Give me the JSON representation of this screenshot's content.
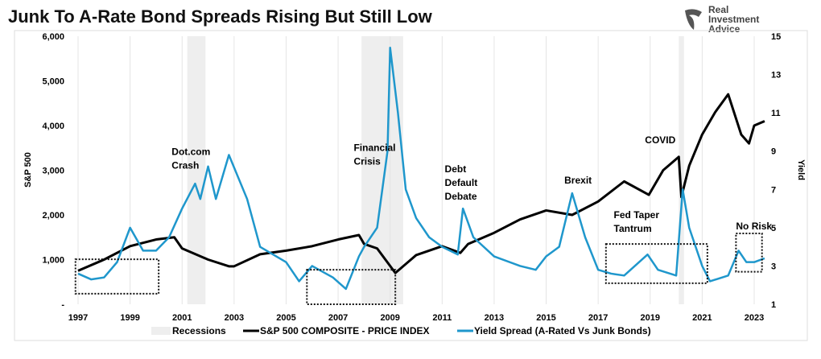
{
  "chart_data": {
    "type": "line",
    "title": "Junk To A-Rate Bond Spreads Rising But Still Low",
    "ylabel": "S&P 500",
    "y2label": "Yield",
    "xlim": [
      1997,
      2023.5
    ],
    "ylim": [
      0,
      6000
    ],
    "y2lim": [
      1,
      15
    ],
    "xticks": [
      "1997",
      "1999",
      "2001",
      "2003",
      "2005",
      "2007",
      "2009",
      "2011",
      "2013",
      "2015",
      "2017",
      "2019",
      "2021",
      "2023"
    ],
    "yticks": [
      "-",
      "1,000",
      "2,000",
      "3,000",
      "4,000",
      "5,000",
      "6,000"
    ],
    "y2ticks": [
      "1",
      "3",
      "5",
      "7",
      "9",
      "11",
      "13",
      "15"
    ],
    "grid": "vertical",
    "legend": {
      "placement": "bottom",
      "items": [
        "Recessions",
        "S&P 500 COMPOSITE - PRICE INDEX",
        "Yield Spread (A-Rated Vs Junk Bonds)"
      ]
    },
    "colors": {
      "recession": "#eeeeee",
      "sp500": "#000000",
      "spread": "#1f97cc"
    },
    "recessions": [
      [
        2001.2,
        2001.9
      ],
      [
        2007.9,
        2009.5
      ],
      [
        2020.1,
        2020.3
      ]
    ],
    "series": [
      {
        "name": "S&P 500 COMPOSITE - PRICE INDEX",
        "axis": "left",
        "points": [
          [
            1997,
            750
          ],
          [
            1998,
            1000
          ],
          [
            1999,
            1300
          ],
          [
            2000,
            1450
          ],
          [
            2000.7,
            1500
          ],
          [
            2001,
            1250
          ],
          [
            2002,
            1000
          ],
          [
            2002.8,
            850
          ],
          [
            2003,
            850
          ],
          [
            2004,
            1120
          ],
          [
            2005,
            1200
          ],
          [
            2006,
            1300
          ],
          [
            2007,
            1450
          ],
          [
            2007.8,
            1550
          ],
          [
            2008,
            1350
          ],
          [
            2008.5,
            1250
          ],
          [
            2009.2,
            700
          ],
          [
            2010,
            1100
          ],
          [
            2011,
            1300
          ],
          [
            2011.7,
            1150
          ],
          [
            2012,
            1350
          ],
          [
            2013,
            1600
          ],
          [
            2014,
            1900
          ],
          [
            2015,
            2100
          ],
          [
            2016,
            2000
          ],
          [
            2017,
            2300
          ],
          [
            2018,
            2750
          ],
          [
            2018.95,
            2450
          ],
          [
            2019.5,
            3000
          ],
          [
            2020.1,
            3300
          ],
          [
            2020.2,
            2400
          ],
          [
            2020.5,
            3100
          ],
          [
            2021,
            3800
          ],
          [
            2021.5,
            4300
          ],
          [
            2022,
            4700
          ],
          [
            2022.5,
            3800
          ],
          [
            2022.8,
            3600
          ],
          [
            2023,
            4000
          ],
          [
            2023.4,
            4100
          ]
        ]
      },
      {
        "name": "Yield Spread (A-Rated Vs Junk Bonds)",
        "axis": "right",
        "points": [
          [
            1997,
            2.6
          ],
          [
            1997.5,
            2.3
          ],
          [
            1998,
            2.4
          ],
          [
            1998.5,
            3.2
          ],
          [
            1999,
            5.0
          ],
          [
            1999.5,
            3.8
          ],
          [
            2000,
            3.8
          ],
          [
            2000.5,
            4.5
          ],
          [
            2001,
            6.0
          ],
          [
            2001.5,
            7.3
          ],
          [
            2001.7,
            6.5
          ],
          [
            2002,
            8.2
          ],
          [
            2002.3,
            6.5
          ],
          [
            2002.8,
            8.8
          ],
          [
            2003.5,
            6.5
          ],
          [
            2004,
            4.0
          ],
          [
            2005,
            3.2
          ],
          [
            2005.5,
            2.2
          ],
          [
            2006,
            3.0
          ],
          [
            2006.8,
            2.4
          ],
          [
            2007.3,
            1.8
          ],
          [
            2007.8,
            3.5
          ],
          [
            2008,
            4.0
          ],
          [
            2008.5,
            5.0
          ],
          [
            2008.9,
            9
          ],
          [
            2009,
            14.4
          ],
          [
            2009.3,
            11
          ],
          [
            2009.6,
            7
          ],
          [
            2010,
            5.5
          ],
          [
            2010.5,
            4.5
          ],
          [
            2011,
            4.0
          ],
          [
            2011.6,
            3.6
          ],
          [
            2011.8,
            6.0
          ],
          [
            2012.2,
            4.5
          ],
          [
            2013,
            3.5
          ],
          [
            2014,
            3.0
          ],
          [
            2014.6,
            2.8
          ],
          [
            2015,
            3.5
          ],
          [
            2015.5,
            4.0
          ],
          [
            2016,
            6.8
          ],
          [
            2016.5,
            4.5
          ],
          [
            2017,
            2.8
          ],
          [
            2017.5,
            2.6
          ],
          [
            2018,
            2.5
          ],
          [
            2018.9,
            3.6
          ],
          [
            2019.3,
            2.8
          ],
          [
            2020,
            2.5
          ],
          [
            2020.25,
            7.0
          ],
          [
            2020.5,
            5.0
          ],
          [
            2021,
            3.0
          ],
          [
            2021.3,
            2.2
          ],
          [
            2022,
            2.5
          ],
          [
            2022.4,
            3.8
          ],
          [
            2022.7,
            3.2
          ],
          [
            2023,
            3.2
          ],
          [
            2023.4,
            3.4
          ]
        ]
      }
    ],
    "annotations": [
      {
        "text": [
          "Dot.com",
          "Crash"
        ],
        "x": 2000.6,
        "y2": 8.8
      },
      {
        "text": [
          "Financial",
          "Crisis"
        ],
        "x": 2007.6,
        "y2": 9.0
      },
      {
        "text": [
          "Debt",
          "Default",
          "Debate"
        ],
        "x": 2011.1,
        "y2": 7.9
      },
      {
        "text": [
          "Brexit"
        ],
        "x": 2015.7,
        "y2": 7.3
      },
      {
        "text": [
          "COVID"
        ],
        "x": 2018.8,
        "y2": 9.4
      },
      {
        "text": [
          "Fed Taper",
          "Tantrum"
        ],
        "x": 2017.6,
        "y2": 5.5
      },
      {
        "text": [
          "No Risk"
        ],
        "x": 2022.3,
        "y2": 4.9
      }
    ],
    "boxes": [
      [
        1996.9,
        2000.1,
        1.55,
        3.35
      ],
      [
        2005.8,
        2009.2,
        1.0,
        2.8
      ],
      [
        2017.3,
        2021.2,
        2.1,
        4.15
      ],
      [
        2022.3,
        2023.3,
        2.7,
        4.7
      ]
    ]
  },
  "logo": {
    "text": [
      "Real",
      "Investment",
      "Advice"
    ]
  }
}
